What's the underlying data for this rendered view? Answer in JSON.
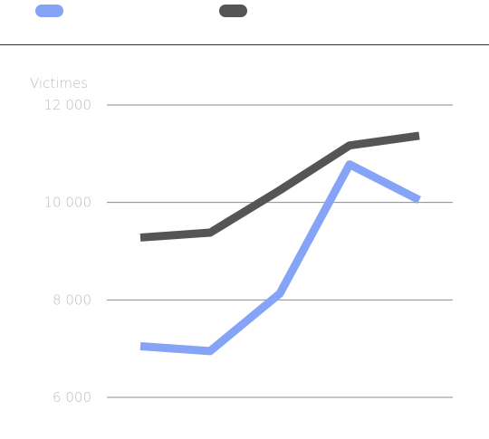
{
  "chart_data": {
    "type": "line",
    "ylabel": "Victimes",
    "ylim": [
      6000,
      12000
    ],
    "yticks": [
      6000,
      8000,
      10000,
      12000
    ],
    "ytick_labels": [
      "6 000",
      "8 000",
      "10 000",
      "12 000"
    ],
    "x": [
      1,
      2,
      3,
      4,
      5
    ],
    "series": [
      {
        "color": "#86a4f7",
        "values": [
          7050,
          6950,
          8130,
          10780,
          10050
        ]
      },
      {
        "color": "#555555",
        "values": [
          9280,
          9380,
          10250,
          11170,
          11370
        ]
      }
    ],
    "grid": true,
    "legend": "top-left"
  }
}
